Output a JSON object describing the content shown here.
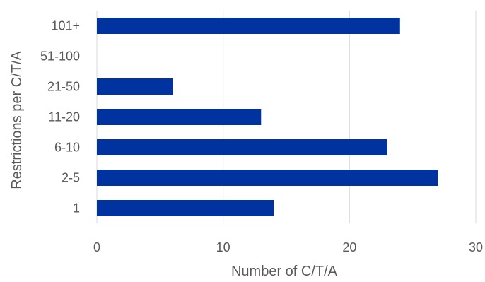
{
  "chart_data": {
    "type": "bar",
    "orientation": "horizontal",
    "title": "",
    "xlabel": "Number of C/T/A",
    "ylabel": "Restrictions per C/T/A",
    "categories": [
      "1",
      "2-5",
      "6-10",
      "11-20",
      "21-50",
      "51-100",
      "101+"
    ],
    "series": [
      {
        "values": [
          14,
          27,
          23,
          13,
          6,
          0,
          24
        ]
      }
    ],
    "xlim": [
      0,
      30
    ],
    "xticks": [
      0,
      10,
      20,
      30
    ],
    "grid": true,
    "legend": "none"
  },
  "colors": {
    "bar": "#0033a0",
    "grid": "#d9d9d9",
    "text": "#595959"
  }
}
